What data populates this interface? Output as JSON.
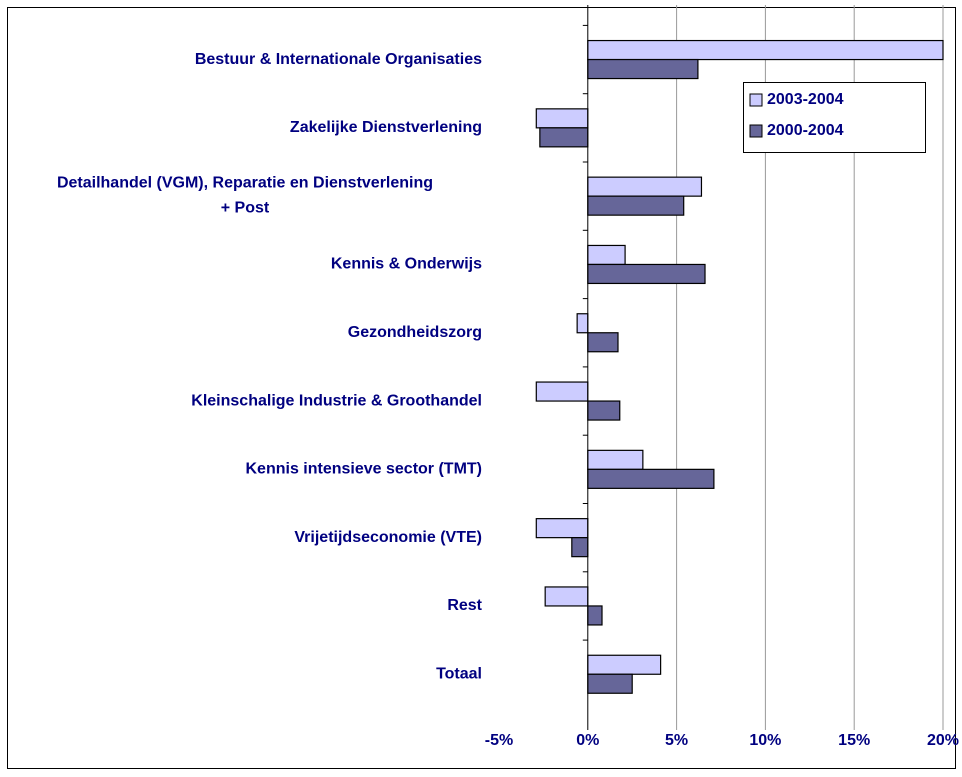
{
  "chart_data": {
    "type": "hbar",
    "categories": [
      "Bestuur & Internationale Organisaties",
      "Zakelijke Dienstverlening",
      "Detailhandel (VGM), Reparatie en Dienstverlening\n+ Post",
      "Kennis & Onderwijs",
      "Gezondheidszorg",
      "Kleinschalige Industrie & Groothandel",
      "Kennis intensieve sector (TMT)",
      "Vrijetijdseconomie (VTE)",
      "Rest",
      "Totaal"
    ],
    "series": [
      {
        "name": "2003-2004",
        "color": "#ccccff",
        "values": [
          20,
          -2.9,
          6.4,
          2.1,
          -0.6,
          -2.9,
          3.1,
          -2.9,
          -2.4,
          4.1
        ]
      },
      {
        "name": "2000-2004",
        "color": "#666699",
        "values": [
          6.2,
          -2.7,
          5.4,
          6.6,
          1.7,
          1.8,
          7.1,
          -0.9,
          0.8,
          2.5
        ]
      }
    ],
    "xlim": [
      -5,
      20
    ],
    "xticks": [
      {
        "value": -5,
        "label": "-5%"
      },
      {
        "value": 0,
        "label": "0%"
      },
      {
        "value": 5,
        "label": "5%"
      },
      {
        "value": 10,
        "label": "10%"
      },
      {
        "value": 15,
        "label": "15%"
      },
      {
        "value": 20,
        "label": "20%"
      }
    ],
    "grid": true,
    "legend": "upper right"
  }
}
